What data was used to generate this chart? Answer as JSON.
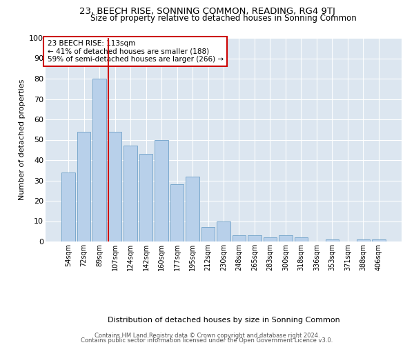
{
  "title": "23, BEECH RISE, SONNING COMMON, READING, RG4 9TJ",
  "subtitle": "Size of property relative to detached houses in Sonning Common",
  "xlabel": "Distribution of detached houses by size in Sonning Common",
  "ylabel": "Number of detached properties",
  "categories": [
    "54sqm",
    "72sqm",
    "89sqm",
    "107sqm",
    "124sqm",
    "142sqm",
    "160sqm",
    "177sqm",
    "195sqm",
    "212sqm",
    "230sqm",
    "248sqm",
    "265sqm",
    "283sqm",
    "300sqm",
    "318sqm",
    "336sqm",
    "353sqm",
    "371sqm",
    "388sqm",
    "406sqm"
  ],
  "values": [
    34,
    54,
    80,
    54,
    47,
    43,
    50,
    28,
    32,
    7,
    10,
    3,
    3,
    2,
    3,
    2,
    0,
    1,
    0,
    1,
    1
  ],
  "bar_color": "#b8d0ea",
  "bar_edge_color": "#6ea0c8",
  "vline_index": 3,
  "vline_color": "#cc0000",
  "annotation_title": "23 BEECH RISE: 113sqm",
  "annotation_line1": "← 41% of detached houses are smaller (188)",
  "annotation_line2": "59% of semi-detached houses are larger (266) →",
  "annotation_box_color": "#cc0000",
  "background_color": "#dce6f0",
  "ylim": [
    0,
    100
  ],
  "yticks": [
    0,
    10,
    20,
    30,
    40,
    50,
    60,
    70,
    80,
    90,
    100
  ],
  "footer1": "Contains HM Land Registry data © Crown copyright and database right 2024.",
  "footer2": "Contains public sector information licensed under the Open Government Licence v3.0."
}
